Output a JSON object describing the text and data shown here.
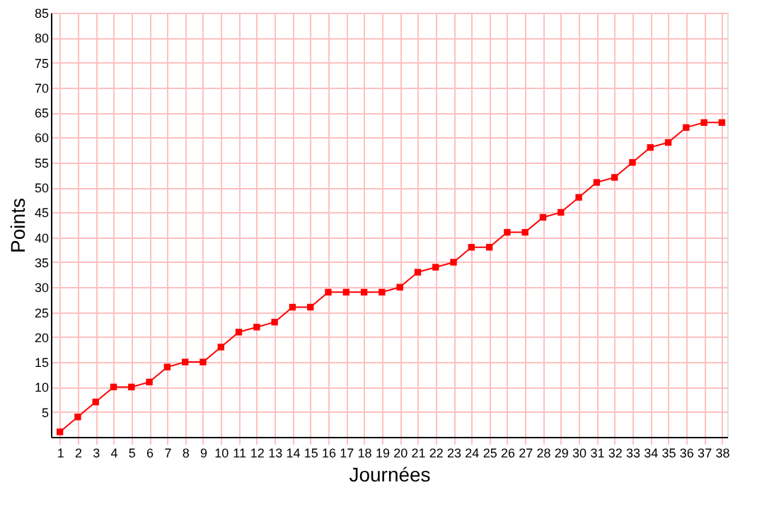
{
  "chart_data": {
    "type": "line",
    "xlabel": "Journées",
    "ylabel": "Points",
    "x": [
      1,
      2,
      3,
      4,
      5,
      6,
      7,
      8,
      9,
      10,
      11,
      12,
      13,
      14,
      15,
      16,
      17,
      18,
      19,
      20,
      21,
      22,
      23,
      24,
      25,
      26,
      27,
      28,
      29,
      30,
      31,
      32,
      33,
      34,
      35,
      36,
      37,
      38
    ],
    "series": [
      {
        "color": "#ff0000",
        "values": [
          1,
          4,
          7,
          10,
          10,
          11,
          14,
          15,
          15,
          18,
          21,
          22,
          23,
          26,
          26,
          29,
          29,
          29,
          29,
          30,
          33,
          34,
          35,
          38,
          38,
          41,
          41,
          44,
          45,
          48,
          51,
          52,
          55,
          58,
          59,
          62,
          63,
          63
        ]
      }
    ],
    "xlim": [
      0.5,
      38.3
    ],
    "xticks": [
      1,
      2,
      3,
      4,
      5,
      6,
      7,
      8,
      9,
      10,
      11,
      12,
      13,
      14,
      15,
      16,
      17,
      18,
      19,
      20,
      21,
      22,
      23,
      24,
      25,
      26,
      27,
      28,
      29,
      30,
      31,
      32,
      33,
      34,
      35,
      36,
      37,
      38
    ],
    "ylim": [
      0,
      85
    ],
    "yticks": [
      5,
      10,
      15,
      20,
      25,
      30,
      35,
      40,
      45,
      50,
      55,
      60,
      65,
      70,
      75,
      80,
      85
    ],
    "grid": true,
    "marker": "square",
    "line_style": "solid"
  }
}
